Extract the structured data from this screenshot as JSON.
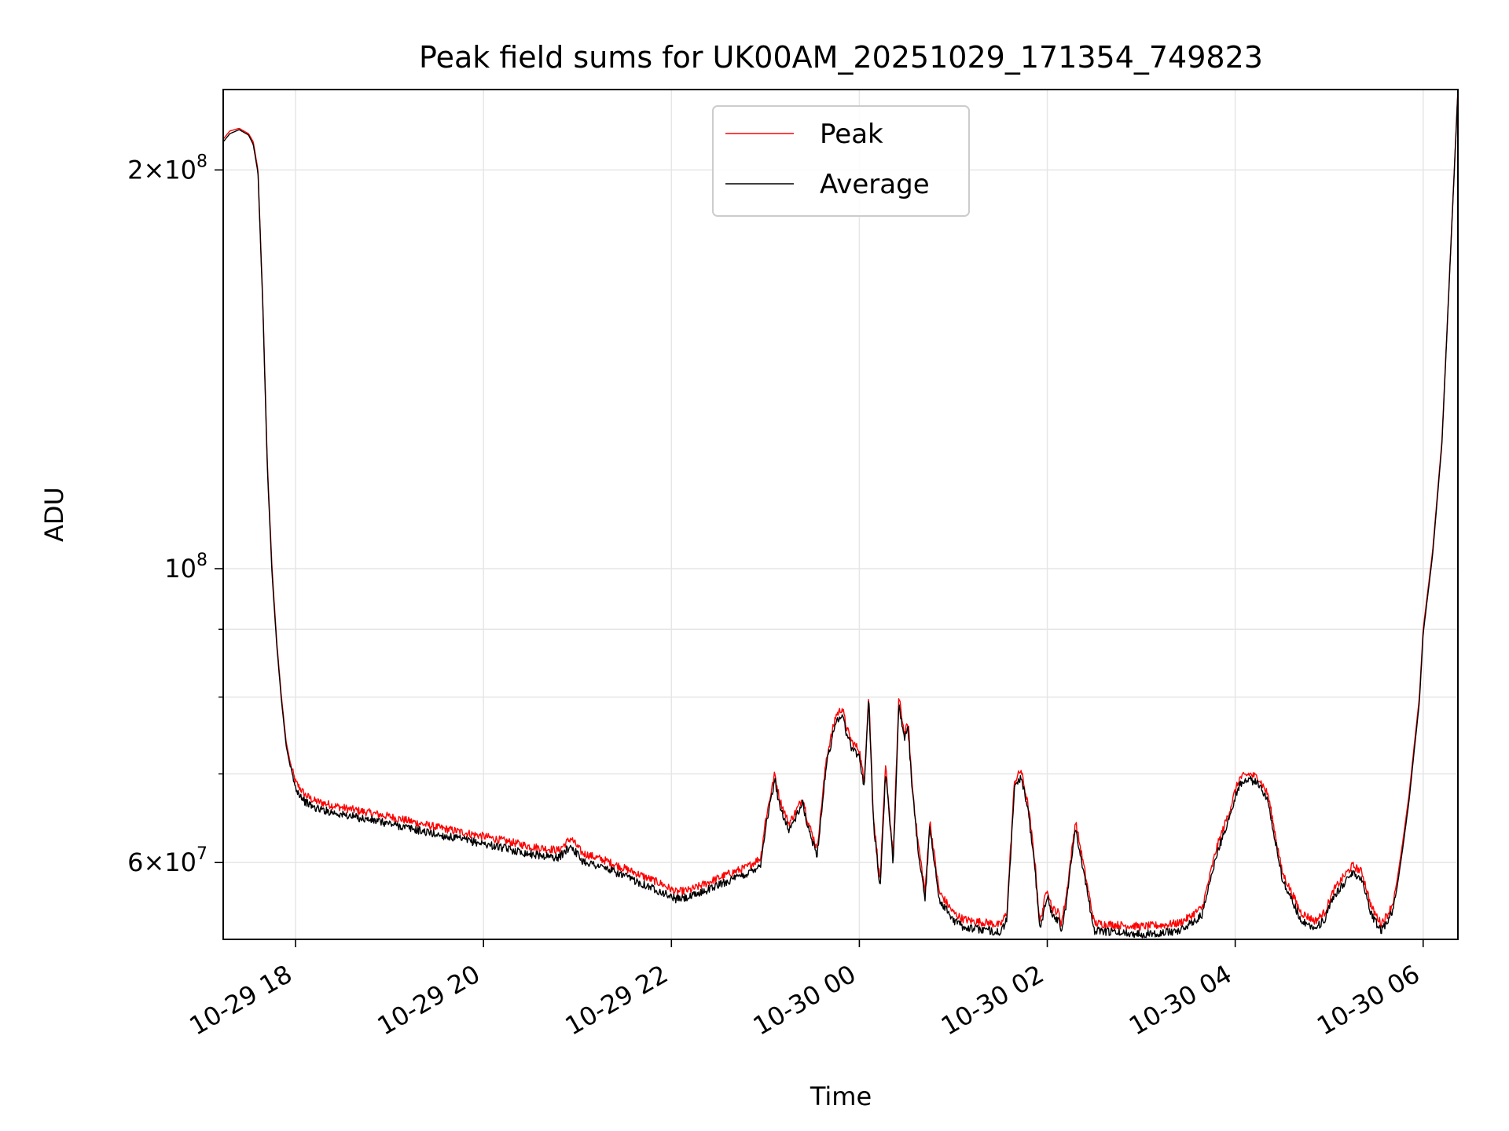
{
  "chart_data": {
    "type": "line",
    "title": "Peak field sums for UK00AM_20251029_171354_749823",
    "xlabel": "Time",
    "ylabel": "ADU",
    "yscale": "log",
    "xlim": [
      17.23,
      30.37
    ],
    "ylim": [
      52500000,
      230000000
    ],
    "grid": true,
    "legend_position": "upper-center",
    "x_unit": "hours since 2025-10-29 00:00",
    "x_ticks": [
      {
        "value": 18,
        "label": "10-29 18"
      },
      {
        "value": 20,
        "label": "10-29 20"
      },
      {
        "value": 22,
        "label": "10-29 22"
      },
      {
        "value": 24,
        "label": "10-30 00"
      },
      {
        "value": 26,
        "label": "10-30 02"
      },
      {
        "value": 28,
        "label": "10-30 04"
      },
      {
        "value": 30,
        "label": "10-30 06"
      }
    ],
    "y_major_ticks": [
      {
        "value": 60000000,
        "mantissa": "6",
        "exp": "7"
      },
      {
        "value": 100000000,
        "mantissa": "",
        "exp": "8"
      },
      {
        "value": 200000000,
        "mantissa": "2",
        "exp": "8"
      }
    ],
    "y_minor_ticks": [
      70000000,
      80000000,
      90000000
    ],
    "colors": {
      "peak": "#ff0000",
      "average": "#000000",
      "grid": "#e6e6e6"
    },
    "series": [
      {
        "name": "Peak",
        "color": "#ff0000",
        "x": [
          17.23,
          17.3,
          17.4,
          17.5,
          17.55,
          17.6,
          17.65,
          17.7,
          17.75,
          17.8,
          17.85,
          17.9,
          17.95,
          18.0,
          18.1,
          18.2,
          18.5,
          19.0,
          19.5,
          20.0,
          20.5,
          20.8,
          20.93,
          21.05,
          21.3,
          21.6,
          21.9,
          22.05,
          22.2,
          22.4,
          22.6,
          22.8,
          22.95,
          23.0,
          23.1,
          23.15,
          23.25,
          23.32,
          23.4,
          23.45,
          23.55,
          23.65,
          23.75,
          23.82,
          23.86,
          23.92,
          24.0,
          24.05,
          24.1,
          24.15,
          24.22,
          24.28,
          24.36,
          24.42,
          24.48,
          24.52,
          24.56,
          24.62,
          24.7,
          24.75,
          24.85,
          25.0,
          25.1,
          25.2,
          25.3,
          25.4,
          25.5,
          25.57,
          25.65,
          25.72,
          25.8,
          25.87,
          25.92,
          26.0,
          26.05,
          26.12,
          26.15,
          26.2,
          26.3,
          26.5,
          26.8,
          27.0,
          27.2,
          27.4,
          27.5,
          27.65,
          27.8,
          27.95,
          28.0,
          28.05,
          28.15,
          28.25,
          28.35,
          28.5,
          28.7,
          28.85,
          28.95,
          29.05,
          29.15,
          29.25,
          29.35,
          29.45,
          29.55,
          29.62,
          29.68,
          29.72,
          29.78,
          29.85,
          29.9,
          29.96,
          30.0,
          30.1,
          30.2,
          30.37
        ],
        "values": [
          211000000,
          214000000,
          215000000,
          213000000,
          210000000,
          200000000,
          160000000,
          120000000,
          100000000,
          88000000,
          80000000,
          74000000,
          71000000,
          69000000,
          67500000,
          66800000,
          66000000,
          65000000,
          63800000,
          62800000,
          61700000,
          61300000,
          62600000,
          61000000,
          60200000,
          59000000,
          57800000,
          57000000,
          57200000,
          58000000,
          58800000,
          59500000,
          60500000,
          64500000,
          70000000,
          67000000,
          64200000,
          65500000,
          67200000,
          64500000,
          61500000,
          72000000,
          77500000,
          78500000,
          76000000,
          74000000,
          73000000,
          69000000,
          80500000,
          65000000,
          58000000,
          71000000,
          60500000,
          80000000,
          75000000,
          76500000,
          69000000,
          62500000,
          57000000,
          64500000,
          57000000,
          55000000,
          54400000,
          54200000,
          54100000,
          54000000,
          53800000,
          55000000,
          69000000,
          70500000,
          66000000,
          60000000,
          54000000,
          57500000,
          55400000,
          55000000,
          54000000,
          56500000,
          64500000,
          54000000,
          53800000,
          53700000,
          53800000,
          54000000,
          54500000,
          55500000,
          61500000,
          66000000,
          68000000,
          69500000,
          70000000,
          69500000,
          67500000,
          59000000,
          55000000,
          54200000,
          55000000,
          57200000,
          58500000,
          59700000,
          59000000,
          55500000,
          54000000,
          54800000,
          56000000,
          58000000,
          62000000,
          67500000,
          73000000,
          80000000,
          90000000,
          103000000,
          125000000,
          230000000
        ]
      },
      {
        "name": "Average",
        "color": "#000000",
        "x": [
          17.23,
          17.3,
          17.4,
          17.5,
          17.55,
          17.6,
          17.65,
          17.7,
          17.75,
          17.8,
          17.85,
          17.9,
          17.95,
          18.0,
          18.1,
          18.2,
          18.5,
          19.0,
          19.5,
          20.0,
          20.5,
          20.8,
          20.93,
          21.05,
          21.3,
          21.6,
          21.9,
          22.05,
          22.2,
          22.4,
          22.6,
          22.8,
          22.95,
          23.0,
          23.1,
          23.15,
          23.25,
          23.32,
          23.4,
          23.45,
          23.55,
          23.65,
          23.75,
          23.82,
          23.86,
          23.92,
          24.0,
          24.05,
          24.1,
          24.15,
          24.22,
          24.28,
          24.36,
          24.42,
          24.48,
          24.52,
          24.56,
          24.62,
          24.7,
          24.75,
          24.85,
          25.0,
          25.1,
          25.2,
          25.3,
          25.4,
          25.5,
          25.57,
          25.65,
          25.72,
          25.8,
          25.87,
          25.92,
          26.0,
          26.05,
          26.12,
          26.15,
          26.2,
          26.3,
          26.5,
          26.8,
          27.0,
          27.2,
          27.4,
          27.5,
          27.65,
          27.8,
          27.95,
          28.0,
          28.05,
          28.15,
          28.25,
          28.35,
          28.5,
          28.7,
          28.85,
          28.95,
          29.05,
          29.15,
          29.25,
          29.35,
          29.45,
          29.55,
          29.62,
          29.68,
          29.72,
          29.78,
          29.85,
          29.9,
          29.96,
          30.0,
          30.1,
          30.2,
          30.37
        ],
        "values": [
          210000000,
          213000000,
          214500000,
          212500000,
          209000000,
          199000000,
          159000000,
          119000000,
          99000000,
          87500000,
          79500000,
          73500000,
          70500000,
          68300000,
          66700000,
          66000000,
          65200000,
          64200000,
          63000000,
          62000000,
          60900000,
          60500000,
          61800000,
          60200000,
          59400000,
          58200000,
          57000000,
          56300000,
          56500000,
          57300000,
          58100000,
          58800000,
          59800000,
          63700000,
          69200000,
          66300000,
          63500000,
          64800000,
          66500000,
          63800000,
          60800000,
          71200000,
          76700000,
          77700000,
          75200000,
          73200000,
          72200000,
          68300000,
          79800000,
          64300000,
          57300000,
          70200000,
          59800000,
          79200000,
          74200000,
          75700000,
          68300000,
          61800000,
          56300000,
          63800000,
          56300000,
          54300000,
          53700000,
          53500000,
          53400000,
          53300000,
          53100000,
          54300000,
          68200000,
          69700000,
          65300000,
          59300000,
          53300000,
          56800000,
          54700000,
          54300000,
          53300000,
          55800000,
          63800000,
          53300000,
          53100000,
          53000000,
          53100000,
          53300000,
          53800000,
          54800000,
          60800000,
          65300000,
          67300000,
          68800000,
          69300000,
          68800000,
          66800000,
          58300000,
          54300000,
          53500000,
          54300000,
          56500000,
          57800000,
          59000000,
          58300000,
          54800000,
          53300000,
          54100000,
          55300000,
          57300000,
          61300000,
          66800000,
          72300000,
          79300000,
          89300000,
          102300000,
          124300000,
          229300000
        ]
      }
    ]
  }
}
